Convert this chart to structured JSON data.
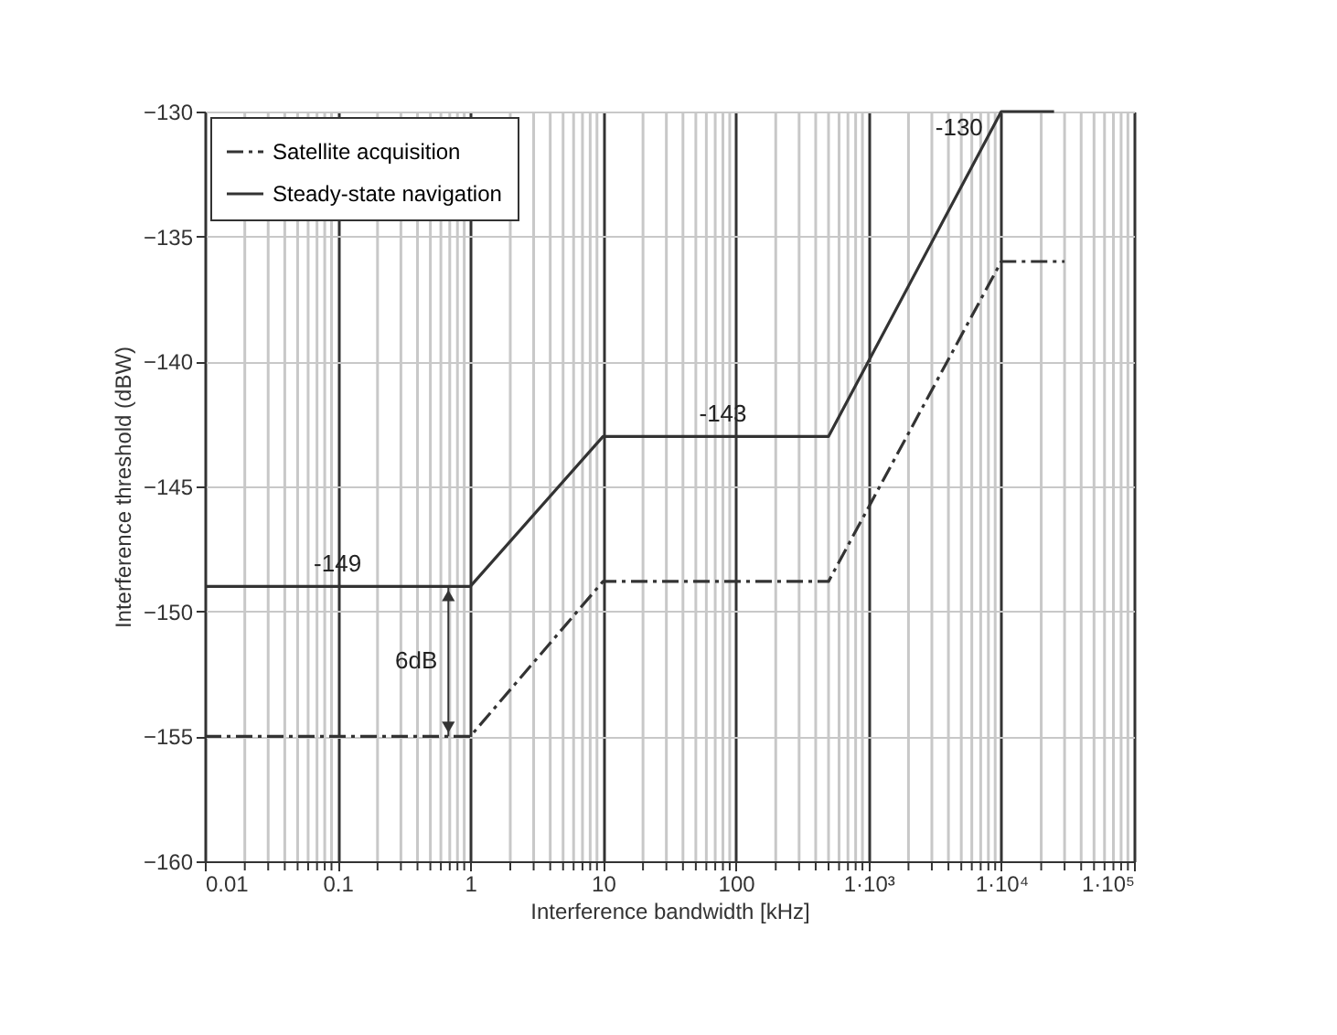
{
  "chart_data": {
    "type": "line",
    "xlabel": "Interference bandwidth [kHz]",
    "ylabel": "Interference threshold (dBW)",
    "series": [
      {
        "name": "Satellite acquisition",
        "color": "#333333",
        "line_style": "dashed",
        "x": [
          0.01,
          1,
          10,
          500,
          10000,
          30000
        ],
        "values": [
          -155,
          -155,
          -148.8,
          -148.8,
          -136,
          -136
        ]
      },
      {
        "name": "Steady-state navigation",
        "color": "#333333",
        "line_style": "solid",
        "x": [
          0.01,
          1,
          10,
          500,
          10000,
          25000
        ],
        "values": [
          -149,
          -149,
          -143,
          -143,
          -130,
          -130
        ]
      }
    ],
    "log": "x",
    "xlim": [
      0.01,
      100000
    ],
    "ylim": [
      -160,
      -130
    ],
    "xticks": [
      0.01,
      {
        "value": 0.02,
        "label": null
      },
      {
        "value": 0.03,
        "label": null
      },
      {
        "value": 0.04,
        "label": null
      },
      {
        "value": 0.05,
        "label": null
      },
      {
        "value": 0.06,
        "label": null
      },
      {
        "value": 0.07,
        "label": null
      },
      {
        "value": 0.08,
        "label": null
      },
      {
        "value": 0.09,
        "label": null
      },
      0.1,
      {
        "value": 0.2,
        "label": null
      },
      {
        "value": 0.3,
        "label": null
      },
      {
        "value": 0.4,
        "label": null
      },
      {
        "value": 0.5,
        "label": null
      },
      {
        "value": 0.6,
        "label": null
      },
      {
        "value": 0.7,
        "label": null
      },
      {
        "value": 0.8,
        "label": null
      },
      {
        "value": 0.9,
        "label": null
      },
      1,
      {
        "value": 2,
        "label": null
      },
      {
        "value": 3,
        "label": null
      },
      {
        "value": 4,
        "label": null
      },
      {
        "value": 5,
        "label": null
      },
      {
        "value": 6,
        "label": null
      },
      {
        "value": 7,
        "label": null
      },
      {
        "value": 8,
        "label": null
      },
      {
        "value": 9,
        "label": null
      },
      10,
      {
        "value": 20,
        "label": null
      },
      {
        "value": 30,
        "label": null
      },
      {
        "value": 40,
        "label": null
      },
      {
        "value": 50,
        "label": null
      },
      {
        "value": 60,
        "label": null
      },
      {
        "value": 70,
        "label": null
      },
      {
        "value": 80,
        "label": null
      },
      {
        "value": 90,
        "label": null
      },
      100,
      {
        "value": 200,
        "label": null
      },
      {
        "value": 300,
        "label": null
      },
      {
        "value": 400,
        "label": null
      },
      {
        "value": 500,
        "label": null
      },
      {
        "value": 600,
        "label": null
      },
      {
        "value": 700,
        "label": null
      },
      {
        "value": 800,
        "label": null
      },
      {
        "value": 900,
        "label": null
      },
      {
        "value": 1000,
        "label": "1·10³"
      },
      {
        "value": 2000,
        "label": null
      },
      {
        "value": 3000,
        "label": null
      },
      {
        "value": 4000,
        "label": null
      },
      {
        "value": 5000,
        "label": null
      },
      {
        "value": 6000,
        "label": null
      },
      {
        "value": 7000,
        "label": null
      },
      {
        "value": 8000,
        "label": null
      },
      {
        "value": 9000,
        "label": null
      },
      {
        "value": 10000,
        "label": "1·10⁴"
      },
      {
        "value": 20000,
        "label": null
      },
      {
        "value": 30000,
        "label": null
      },
      {
        "value": 40000,
        "label": null
      },
      {
        "value": 50000,
        "label": null
      },
      {
        "value": 60000,
        "label": null
      },
      {
        "value": 70000,
        "label": null
      },
      {
        "value": 80000,
        "label": null
      },
      {
        "value": 90000,
        "label": null
      },
      {
        "value": 100000,
        "label": "1·10⁵"
      }
    ],
    "yticks": [
      -160,
      -155,
      -150,
      -145,
      -140,
      -135,
      -130
    ],
    "grid": true,
    "legend": "top left",
    "marker": "none",
    "annotations": [
      {
        "text": "-149",
        "x": 0.1,
        "y": -149
      },
      {
        "text": "-143",
        "x": 80,
        "y": -143
      },
      {
        "text": "-130",
        "x": 10000,
        "y": -130
      },
      "6dB"
    ]
  }
}
